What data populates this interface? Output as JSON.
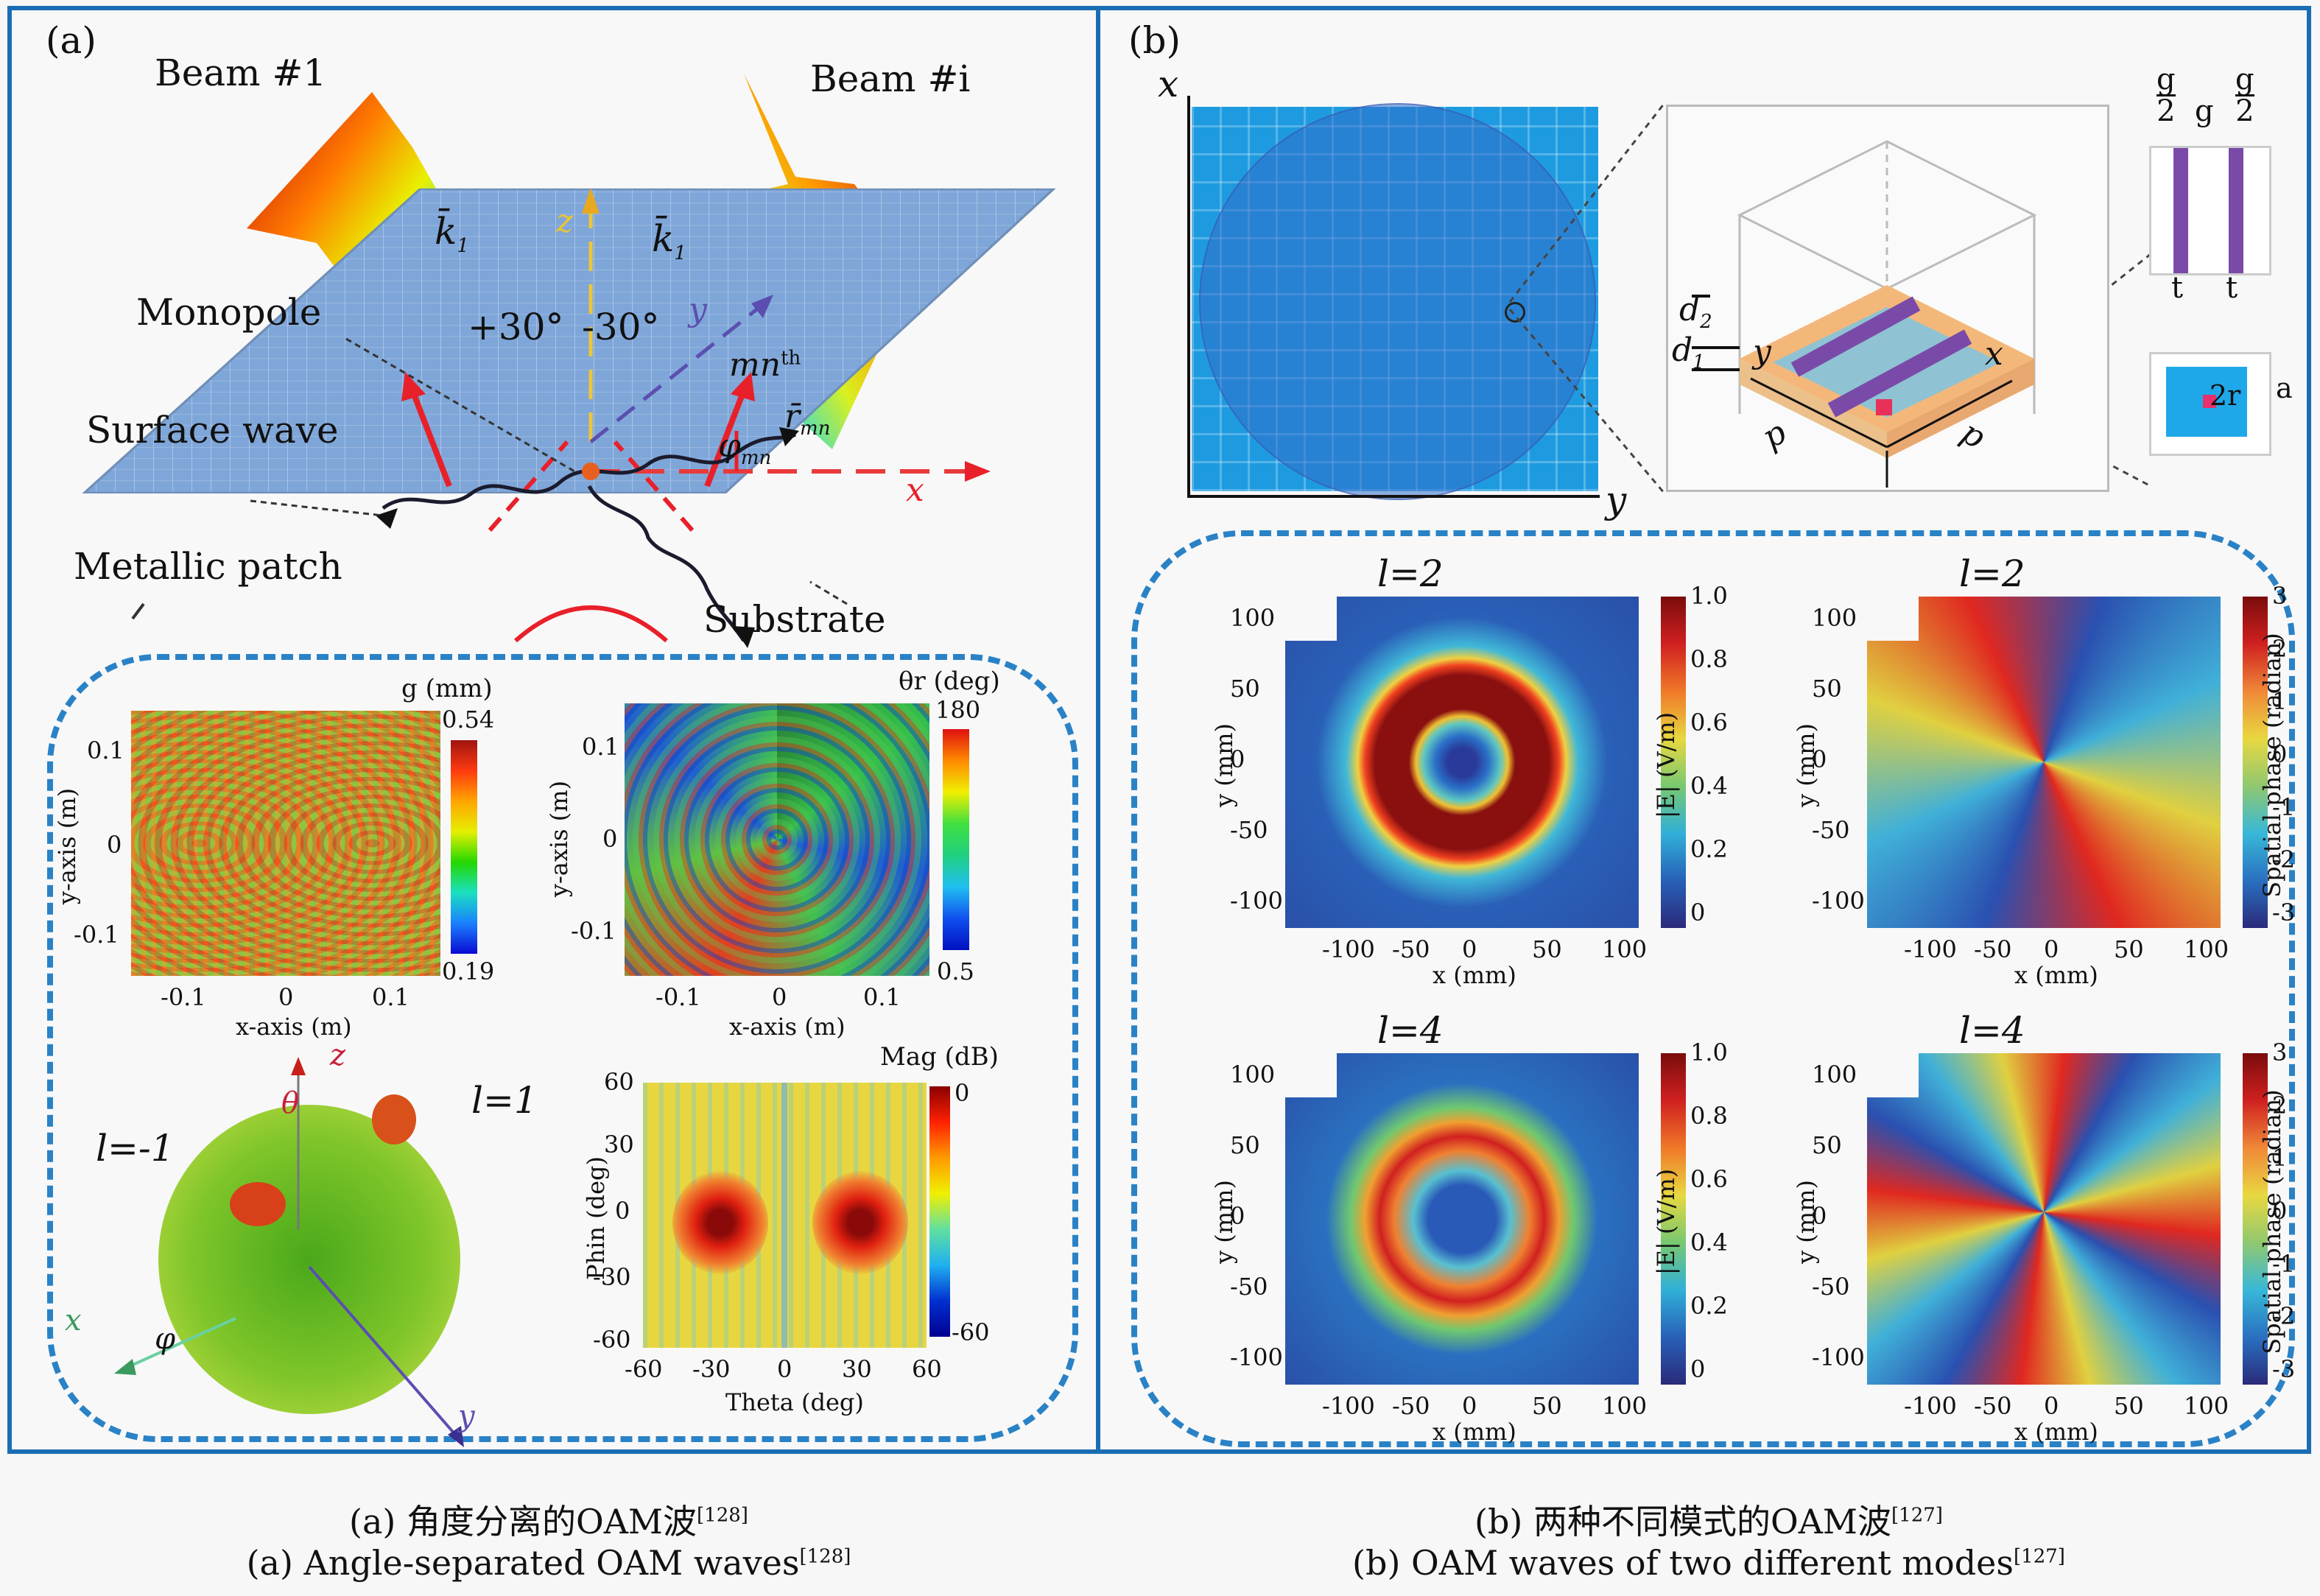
{
  "figure": {
    "panel_a": {
      "tag": "(a)",
      "beam1": "Beam #1",
      "beam_i": "Beam #i",
      "k1_left": "k̄",
      "k1_right": "k̄",
      "k_sub": "1",
      "z_axis": "z",
      "y_axis": "y",
      "x_axis": "x",
      "angle_plus": "+30°",
      "angle_minus": "-30°",
      "monopole": "Monopole",
      "surface_wave": "Surface wave",
      "metallic_patch": "Metallic patch",
      "substrate": "Substrate",
      "mn_th": "mn",
      "mn_sup": "th",
      "r_mn": "r̄",
      "r_sub": "mn",
      "phi_mn": "φ",
      "phi_sub": "mn",
      "plot_g": {
        "colorbar_title": "g (mm)",
        "cbar_max": "0.54",
        "cbar_min": "0.19",
        "xlabel": "x-axis (m)",
        "ylabel": "y-axis (m)",
        "xticks": [
          "-0.1",
          "0",
          "0.1"
        ],
        "yticks": [
          "0.1",
          "0",
          "-0.1"
        ]
      },
      "plot_theta": {
        "colorbar_title": "θr (deg)",
        "cbar_max": "180",
        "cbar_min": "0.5",
        "xlabel": "x-axis (m)",
        "ylabel": "y-axis (m)",
        "xticks": [
          "-0.1",
          "0",
          "0.1"
        ],
        "yticks": [
          "0.1",
          "0",
          "-0.1"
        ]
      },
      "pattern3d": {
        "l_neg": "l=-1",
        "l_pos": "l=1",
        "z": "z",
        "theta": "θ",
        "x": "x",
        "phi": "φ",
        "y": "y"
      },
      "plot_mag": {
        "colorbar_title": "Mag (dB)",
        "cbar_max": "0",
        "cbar_min": "-60",
        "xlabel": "Theta (deg)",
        "ylabel": "Phin (deg)",
        "xticks": [
          "-60",
          "-30",
          "0",
          "30",
          "60"
        ],
        "yticks": [
          "60",
          "30",
          "0",
          "-30",
          "-60"
        ]
      }
    },
    "panel_b": {
      "tag": "(b)",
      "array_x": "x",
      "array_y": "y",
      "cell": {
        "d2": "d",
        "d2_sub": "2",
        "d1": "d",
        "d1_sub": "1",
        "y": "y",
        "x": "x",
        "p_left": "p",
        "p_right": "p"
      },
      "detail_top": {
        "g_half_num": "g",
        "g_half_den": "2",
        "g": "g",
        "t": "t"
      },
      "detail_bottom": {
        "two_r": "2r",
        "a": "a"
      },
      "plots": [
        {
          "title": "l=2",
          "kind": "magnitude",
          "cbar_label": "|E| (V/m)",
          "cbar_ticks": [
            "1.0",
            "0.8",
            "0.6",
            "0.4",
            "0.2",
            "0"
          ],
          "xlabel": "x (mm)",
          "ylabel": "y (mm)",
          "xticks": [
            "-100",
            "-50",
            "0",
            "50",
            "100"
          ],
          "yticks": [
            "100",
            "50",
            "0",
            "-50",
            "-100"
          ]
        },
        {
          "title": "l=2",
          "kind": "phase",
          "cbar_label": "Spatial phase (radian)",
          "cbar_ticks": [
            "3",
            "2",
            "1",
            "0",
            "-1",
            "-2",
            "-3"
          ],
          "xlabel": "x (mm)",
          "ylabel": "y (mm)",
          "xticks": [
            "-100",
            "-50",
            "0",
            "50",
            "100"
          ],
          "yticks": [
            "100",
            "50",
            "0",
            "-50",
            "-100"
          ]
        },
        {
          "title": "l=4",
          "kind": "magnitude",
          "cbar_label": "|E| (V/m)",
          "cbar_ticks": [
            "1.0",
            "0.8",
            "0.6",
            "0.4",
            "0.2",
            "0"
          ],
          "xlabel": "x (mm)",
          "ylabel": "y (mm)",
          "xticks": [
            "-100",
            "-50",
            "0",
            "50",
            "100"
          ],
          "yticks": [
            "100",
            "50",
            "0",
            "-50",
            "-100"
          ]
        },
        {
          "title": "l=4",
          "kind": "phase",
          "cbar_label": "Spatial phase (radian)",
          "cbar_ticks": [
            "3",
            "2",
            "1",
            "0",
            "-1",
            "-2",
            "-3"
          ],
          "xlabel": "x (mm)",
          "ylabel": "y (mm)",
          "xticks": [
            "-100",
            "-50",
            "0",
            "50",
            "100"
          ],
          "yticks": [
            "100",
            "50",
            "0",
            "-50",
            "-100"
          ]
        }
      ]
    },
    "captions": {
      "a_cn": "(a) 角度分离的OAM波",
      "a_cn_ref": "[128]",
      "a_en": "(a) Angle-separated OAM waves",
      "a_en_ref": "[128]",
      "b_cn": "(b) 两种不同模式的OAM波",
      "b_cn_ref": "[127]",
      "b_en": "(b) OAM waves of two different modes",
      "b_en_ref": "[127]"
    },
    "colors": {
      "frame": "#1a6db3",
      "dashed_box": "#2a82c6",
      "plate": "#7ea6d6",
      "arrow_red": "#e8202a",
      "z_axis": "#e8c33a",
      "y_axis": "#5a4fb0",
      "unit_cell_orange": "#f4b77a",
      "unit_cell_cyan": "#8fc3d3",
      "strip_purple": "#7a4aa8",
      "array_blue": "#1e9be0"
    }
  }
}
